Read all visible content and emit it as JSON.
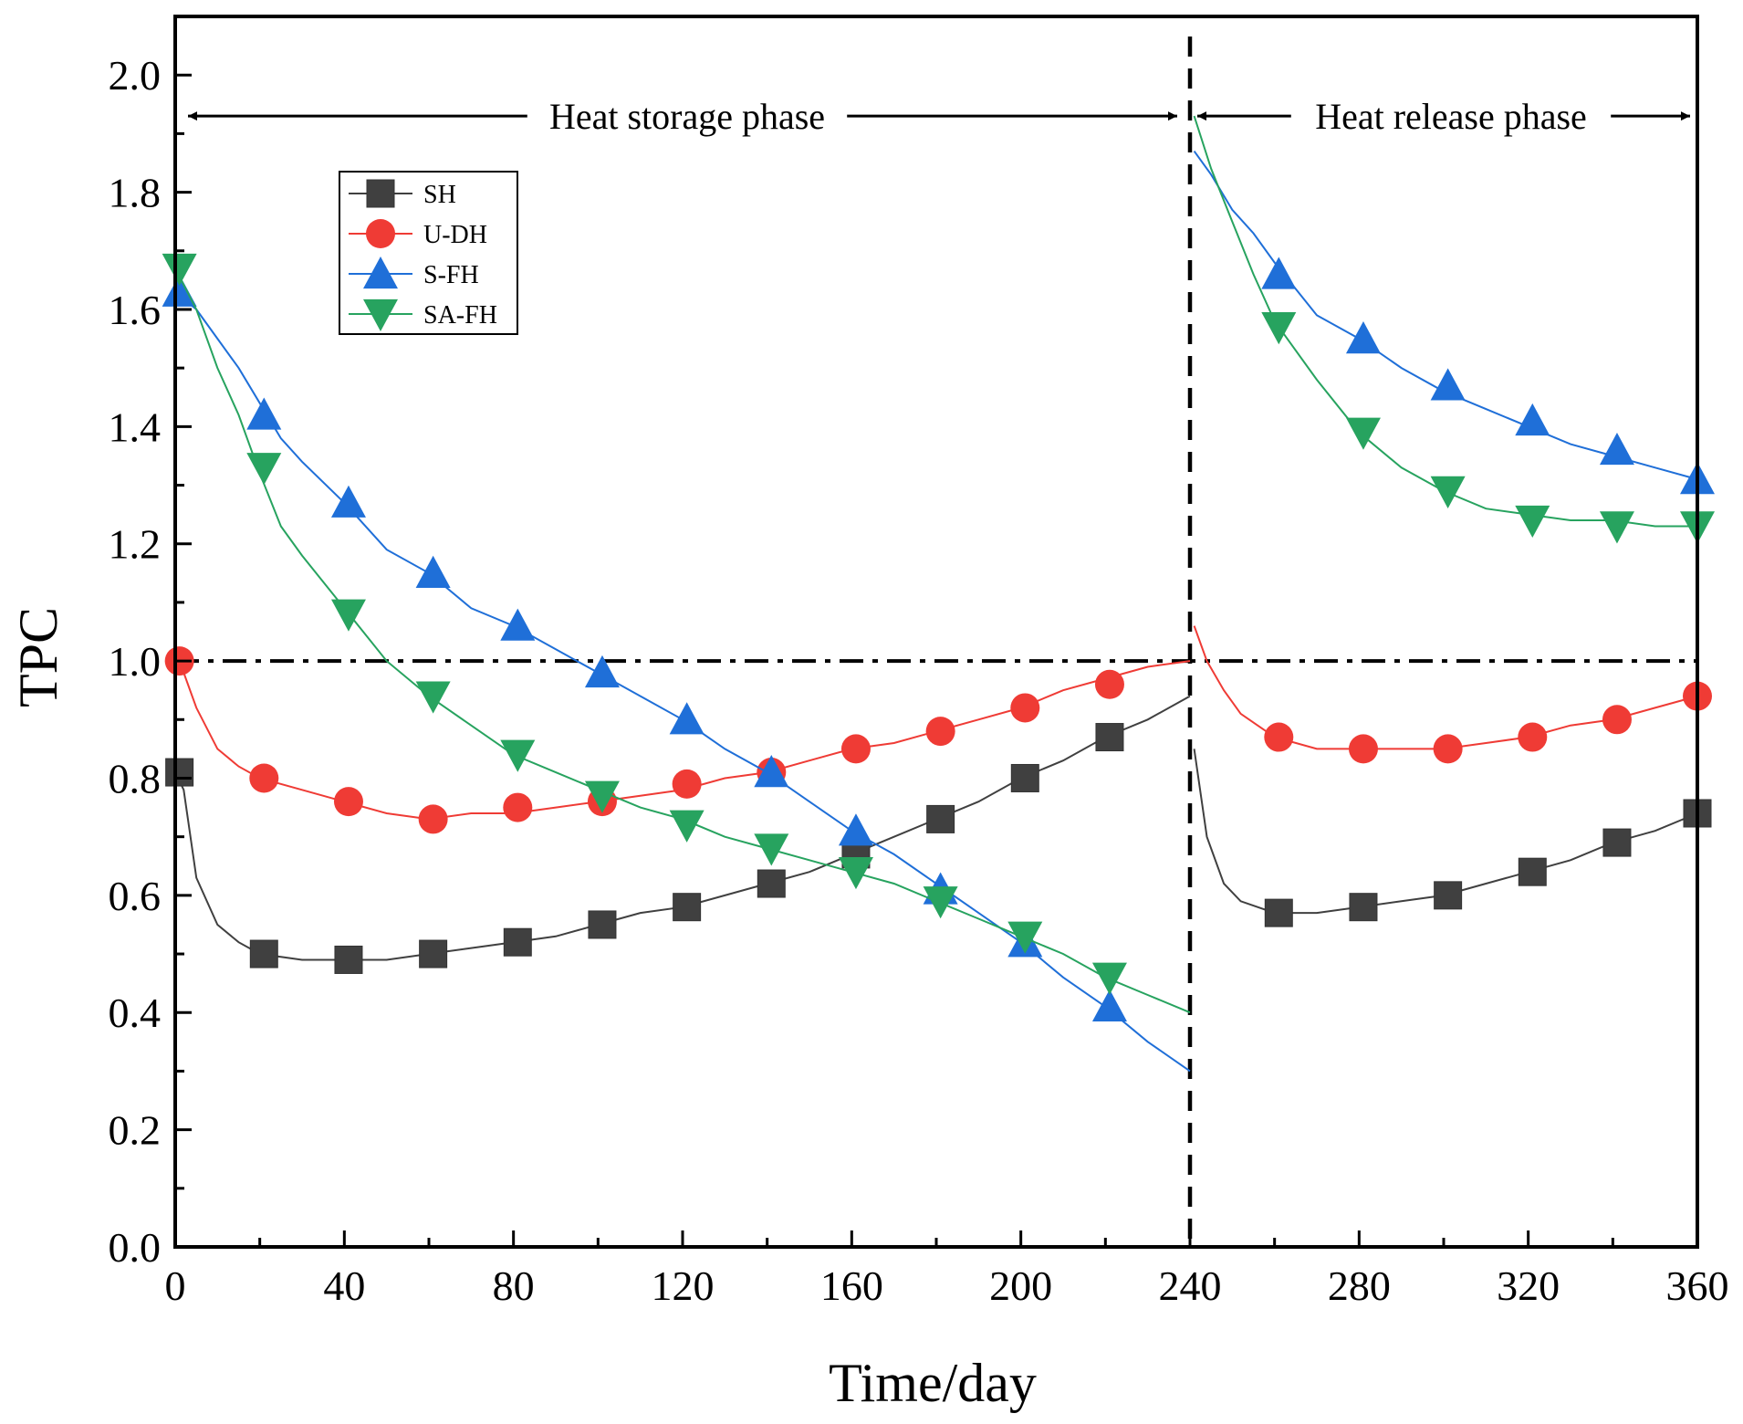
{
  "chart_data": {
    "type": "line",
    "title": "",
    "xlabel": "Time/day",
    "ylabel": "TPC",
    "xlim": [
      0,
      360
    ],
    "ylim": [
      0.0,
      2.1
    ],
    "xticks": [
      "0",
      "40",
      "80",
      "120",
      "160",
      "200",
      "240",
      "280",
      "320",
      "360"
    ],
    "yticks": [
      "0.0",
      "0.2",
      "0.4",
      "0.6",
      "0.8",
      "1.0",
      "1.2",
      "1.4",
      "1.6",
      "1.8",
      "2.0"
    ],
    "reference_lines": {
      "horizontal_y": 1.0,
      "horizontal_style": "dash-dot",
      "vertical_x": 240,
      "vertical_style": "dashed"
    },
    "annotations": [
      {
        "text": "Heat storage phase",
        "x_from": 0,
        "x_to": 240,
        "y": 1.93
      },
      {
        "text": "Heat release phase",
        "x_from": 240,
        "x_to": 360,
        "y": 1.93
      }
    ],
    "legend_position": "top-left",
    "series": [
      {
        "name": "SH",
        "color": "#404040",
        "marker": "square",
        "segments": [
          {
            "x": [
              0,
              2,
              5,
              10,
              15,
              20,
              30,
              40,
              50,
              60,
              70,
              80,
              90,
              100,
              110,
              120,
              130,
              140,
              150,
              160,
              170,
              180,
              190,
              200,
              210,
              220,
              230,
              240
            ],
            "y": [
              0.81,
              0.78,
              0.63,
              0.55,
              0.52,
              0.5,
              0.49,
              0.49,
              0.49,
              0.5,
              0.51,
              0.52,
              0.53,
              0.55,
              0.57,
              0.58,
              0.6,
              0.62,
              0.64,
              0.67,
              0.7,
              0.73,
              0.76,
              0.8,
              0.83,
              0.87,
              0.9,
              0.94
            ]
          },
          {
            "x": [
              241,
              244,
              248,
              252,
              256,
              260,
              270,
              280,
              290,
              300,
              310,
              320,
              330,
              340,
              350,
              360
            ],
            "y": [
              0.85,
              0.7,
              0.62,
              0.59,
              0.58,
              0.57,
              0.57,
              0.58,
              0.59,
              0.6,
              0.62,
              0.64,
              0.66,
              0.69,
              0.71,
              0.74
            ]
          }
        ],
        "markers": {
          "x": [
            1,
            21,
            41,
            61,
            81,
            101,
            121,
            141,
            161,
            181,
            201,
            221,
            261,
            281,
            301,
            321,
            341,
            360
          ],
          "y": [
            0.81,
            0.5,
            0.49,
            0.5,
            0.52,
            0.55,
            0.58,
            0.62,
            0.67,
            0.73,
            0.8,
            0.87,
            0.57,
            0.58,
            0.6,
            0.64,
            0.69,
            0.74
          ]
        }
      },
      {
        "name": "U-DH",
        "color": "#ef3b35",
        "marker": "circle",
        "segments": [
          {
            "x": [
              0,
              2,
              5,
              10,
              15,
              20,
              30,
              40,
              50,
              60,
              70,
              80,
              90,
              100,
              110,
              120,
              130,
              140,
              150,
              160,
              170,
              180,
              190,
              200,
              210,
              220,
              230,
              240
            ],
            "y": [
              1.0,
              0.98,
              0.92,
              0.85,
              0.82,
              0.8,
              0.78,
              0.76,
              0.74,
              0.73,
              0.74,
              0.74,
              0.75,
              0.76,
              0.77,
              0.78,
              0.8,
              0.81,
              0.83,
              0.85,
              0.86,
              0.88,
              0.9,
              0.92,
              0.95,
              0.97,
              0.99,
              1.0
            ]
          },
          {
            "x": [
              241,
              244,
              248,
              252,
              256,
              260,
              270,
              280,
              290,
              300,
              310,
              320,
              330,
              340,
              350,
              360
            ],
            "y": [
              1.06,
              1.0,
              0.95,
              0.91,
              0.89,
              0.87,
              0.85,
              0.85,
              0.85,
              0.85,
              0.86,
              0.87,
              0.89,
              0.9,
              0.92,
              0.94
            ]
          }
        ],
        "markers": {
          "x": [
            1,
            21,
            41,
            61,
            81,
            101,
            121,
            141,
            161,
            181,
            201,
            221,
            261,
            281,
            301,
            321,
            341,
            360
          ],
          "y": [
            1.0,
            0.8,
            0.76,
            0.73,
            0.75,
            0.76,
            0.79,
            0.81,
            0.85,
            0.88,
            0.92,
            0.96,
            0.87,
            0.85,
            0.85,
            0.87,
            0.9,
            0.94
          ]
        }
      },
      {
        "name": "S-FH",
        "color": "#1f6fd8",
        "marker": "triangle-up",
        "segments": [
          {
            "x": [
              0,
              5,
              10,
              15,
              20,
              25,
              30,
              40,
              50,
              60,
              70,
              80,
              90,
              100,
              110,
              120,
              130,
              140,
              150,
              160,
              170,
              180,
              190,
              200,
              210,
              220,
              230,
              240
            ],
            "y": [
              1.63,
              1.6,
              1.55,
              1.5,
              1.44,
              1.38,
              1.34,
              1.27,
              1.19,
              1.15,
              1.09,
              1.06,
              1.02,
              0.98,
              0.94,
              0.9,
              0.85,
              0.81,
              0.76,
              0.71,
              0.67,
              0.62,
              0.57,
              0.52,
              0.46,
              0.41,
              0.35,
              0.3
            ]
          },
          {
            "x": [
              241,
              245,
              250,
              255,
              260,
              270,
              280,
              290,
              300,
              310,
              320,
              330,
              340,
              350,
              360
            ],
            "y": [
              1.87,
              1.83,
              1.77,
              1.73,
              1.68,
              1.59,
              1.55,
              1.5,
              1.46,
              1.43,
              1.4,
              1.37,
              1.35,
              1.33,
              1.31
            ]
          }
        ],
        "markers": {
          "x": [
            1,
            21,
            41,
            61,
            81,
            101,
            121,
            141,
            161,
            181,
            201,
            221,
            261,
            281,
            301,
            321,
            341,
            360
          ],
          "y": [
            1.63,
            1.42,
            1.27,
            1.15,
            1.06,
            0.98,
            0.9,
            0.81,
            0.71,
            0.61,
            0.52,
            0.41,
            1.66,
            1.55,
            1.47,
            1.41,
            1.36,
            1.31
          ]
        }
      },
      {
        "name": "SA-FH",
        "color": "#27a35f",
        "marker": "triangle-down",
        "segments": [
          {
            "x": [
              0,
              5,
              10,
              15,
              20,
              25,
              30,
              40,
              50,
              60,
              70,
              80,
              90,
              100,
              110,
              120,
              130,
              140,
              150,
              160,
              170,
              180,
              190,
              200,
              210,
              220,
              230,
              240
            ],
            "y": [
              1.67,
              1.6,
              1.5,
              1.42,
              1.32,
              1.23,
              1.18,
              1.09,
              1.0,
              0.94,
              0.89,
              0.84,
              0.81,
              0.78,
              0.75,
              0.73,
              0.7,
              0.68,
              0.66,
              0.64,
              0.62,
              0.59,
              0.56,
              0.53,
              0.5,
              0.46,
              0.43,
              0.4
            ]
          },
          {
            "x": [
              241,
              245,
              250,
              255,
              260,
              270,
              280,
              290,
              300,
              310,
              320,
              330,
              340,
              350,
              360
            ],
            "y": [
              1.93,
              1.84,
              1.75,
              1.66,
              1.58,
              1.48,
              1.39,
              1.33,
              1.29,
              1.26,
              1.25,
              1.24,
              1.24,
              1.23,
              1.23
            ]
          }
        ],
        "markers": {
          "x": [
            1,
            21,
            41,
            61,
            81,
            101,
            121,
            141,
            161,
            181,
            201,
            221,
            261,
            281,
            301,
            321,
            341,
            360
          ],
          "y": [
            1.67,
            1.33,
            1.08,
            0.94,
            0.84,
            0.77,
            0.72,
            0.68,
            0.64,
            0.59,
            0.53,
            0.46,
            1.57,
            1.39,
            1.29,
            1.24,
            1.23,
            1.23
          ]
        }
      }
    ]
  }
}
